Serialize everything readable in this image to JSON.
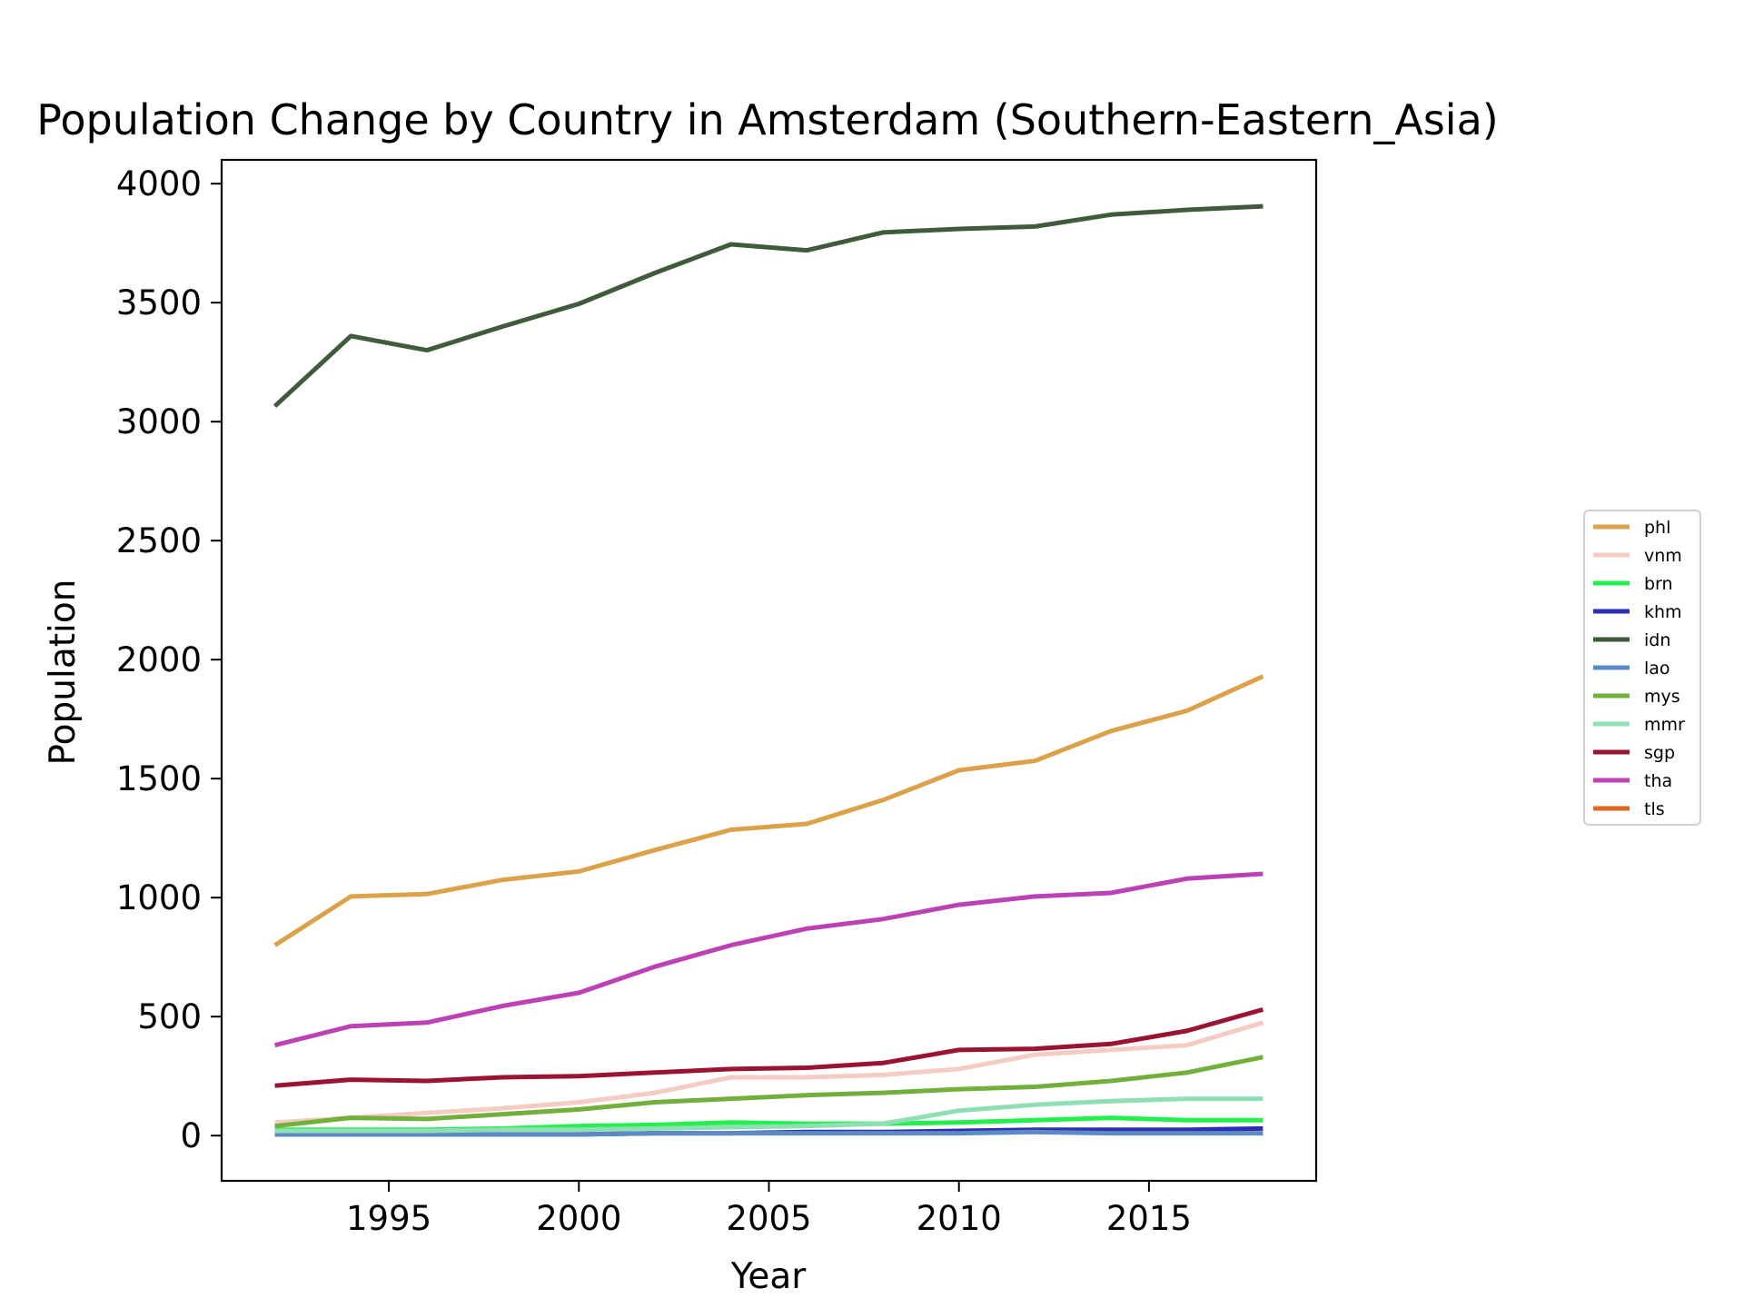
{
  "chart_data": {
    "type": "line",
    "title": "Population Change by Country in Amsterdam (Southern-Eastern_Asia)",
    "xlabel": "Year",
    "ylabel": "Population",
    "xlim": [
      1990.6,
      2019.4
    ],
    "ylim": [
      -190,
      4100
    ],
    "xticks": [
      1995,
      2000,
      2005,
      2010,
      2015
    ],
    "yticks": [
      0,
      500,
      1000,
      1500,
      2000,
      2500,
      3000,
      3500,
      4000
    ],
    "grid": false,
    "legend_position": "right",
    "x": [
      1992,
      1994,
      1996,
      1998,
      2000,
      2002,
      2004,
      2006,
      2008,
      2010,
      2012,
      2014,
      2016,
      2018
    ],
    "series": [
      {
        "name": "phl",
        "color": "#dca24a",
        "values": [
          800,
          1005,
          1015,
          1075,
          1110,
          1200,
          1285,
          1310,
          1410,
          1535,
          1575,
          1700,
          1785,
          1930
        ]
      },
      {
        "name": "vnm",
        "color": "#f5cbc3",
        "values": [
          55,
          75,
          95,
          115,
          140,
          180,
          245,
          245,
          255,
          280,
          340,
          360,
          380,
          475
        ]
      },
      {
        "name": "brn",
        "color": "#22f04c",
        "values": [
          25,
          25,
          25,
          30,
          40,
          45,
          55,
          50,
          50,
          55,
          65,
          75,
          65,
          65
        ]
      },
      {
        "name": "khm",
        "color": "#2a2fb3",
        "values": [
          5,
          5,
          5,
          5,
          5,
          10,
          10,
          15,
          15,
          20,
          25,
          25,
          25,
          30
        ]
      },
      {
        "name": "idn",
        "color": "#3f5b3b",
        "values": [
          3065,
          3360,
          3300,
          3400,
          3495,
          3625,
          3745,
          3720,
          3795,
          3810,
          3820,
          3870,
          3890,
          3905
        ]
      },
      {
        "name": "lao",
        "color": "#5c8ac2",
        "values": [
          5,
          5,
          5,
          5,
          5,
          10,
          10,
          10,
          10,
          10,
          15,
          10,
          10,
          10
        ]
      },
      {
        "name": "mys",
        "color": "#72b03c",
        "values": [
          40,
          75,
          70,
          90,
          110,
          140,
          155,
          170,
          180,
          195,
          205,
          230,
          265,
          330
        ]
      },
      {
        "name": "mmr",
        "color": "#8fdfb4",
        "values": [
          20,
          20,
          20,
          25,
          25,
          30,
          35,
          40,
          50,
          105,
          130,
          145,
          155,
          155
        ]
      },
      {
        "name": "sgp",
        "color": "#9a1331",
        "values": [
          210,
          235,
          230,
          245,
          250,
          265,
          280,
          285,
          305,
          360,
          365,
          385,
          440,
          530
        ]
      },
      {
        "name": "tha",
        "color": "#bb41b5",
        "values": [
          380,
          460,
          475,
          545,
          600,
          710,
          800,
          870,
          910,
          970,
          1005,
          1020,
          1080,
          1100
        ]
      },
      {
        "name": "tls",
        "color": "#dd6a24",
        "values": [
          null,
          null,
          null,
          null,
          null,
          null,
          null,
          null,
          null,
          null,
          null,
          null,
          null,
          null
        ]
      }
    ]
  }
}
